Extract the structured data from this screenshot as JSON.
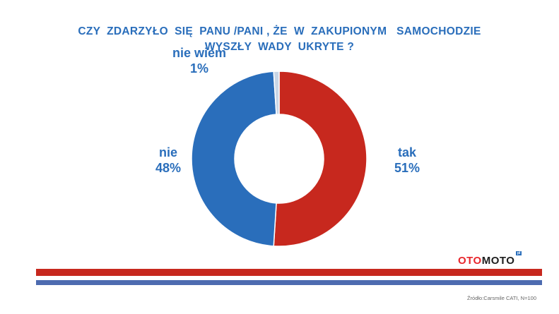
{
  "chart_data": {
    "type": "pie",
    "style": "donut",
    "title": "CZY  ZDARZYŁO  SIĘ  PANU /PANI , ŻE  W  ZAKUPIONYM   SAMOCHODZIE\nWYSZŁY  WADY  UKRYTE ?",
    "slices": [
      {
        "label": "tak",
        "value": 51,
        "value_label": "51%",
        "color": "#c7281e"
      },
      {
        "label": "nie",
        "value": 48,
        "value_label": "48%",
        "color": "#2a6ebb"
      },
      {
        "label": "nie wiem",
        "value": 1,
        "value_label": "1%",
        "color": "#c9d6e6"
      }
    ],
    "label_color": "#2a6ebb"
  },
  "branding": {
    "logo_parts": [
      "OTO",
      "MOTO"
    ],
    "logo_badge": "pl",
    "logo_colors": [
      "#e8262c",
      "#1e1e1e"
    ]
  },
  "stripes": {
    "top_color": "#c7281e",
    "bottom_color": "#4d6bb0"
  },
  "source": "Źródło:Carsmile CATI, N=100"
}
